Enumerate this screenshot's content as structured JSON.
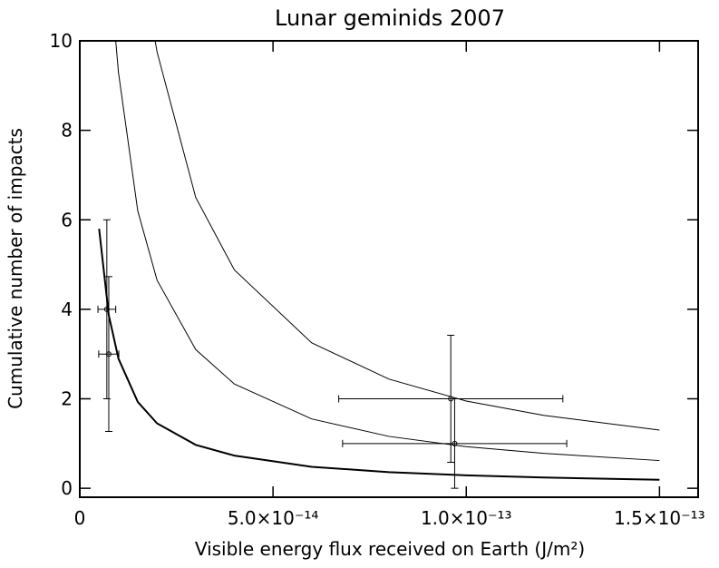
{
  "chart_data": {
    "type": "line",
    "title": "Lunar geminids 2007",
    "x_label": "Visible energy flux received on Earth (J/m²)",
    "y_label": "Cumulative number of impacts",
    "xlim": [
      0,
      1.6e-13
    ],
    "ylim": [
      -0.2,
      10
    ],
    "xticks": [
      0,
      {
        "value": 5e-14,
        "label": "5.0×10⁻¹⁴"
      },
      {
        "value": 1e-13,
        "label": "1.0×10⁻¹³"
      },
      {
        "value": 1.5e-13,
        "label": "1.5×10⁻¹³"
      }
    ],
    "yticks": [
      0,
      2,
      4,
      6,
      8,
      10
    ],
    "color": "#000000",
    "series": [
      {
        "color": "#000000",
        "line_width": 2,
        "x": [
          5e-15,
          7.5e-15,
          1e-14,
          1.5e-14,
          2e-14,
          3e-14,
          4e-14,
          6e-14,
          8e-14,
          1e-13,
          1.2e-13,
          1.5e-13
        ],
        "values": [
          5.8,
          3.87,
          2.9,
          1.93,
          1.45,
          0.97,
          0.73,
          0.48,
          0.36,
          0.29,
          0.24,
          0.19
        ]
      },
      {
        "color": "#000000",
        "line_width": 1,
        "x": [
          9.3e-15,
          1e-14,
          1.5e-14,
          2e-14,
          3e-14,
          4e-14,
          6e-14,
          8e-14,
          1e-13,
          1.2e-13,
          1.5e-13
        ],
        "values": [
          10,
          9.3,
          6.2,
          4.65,
          3.1,
          2.33,
          1.55,
          1.16,
          0.93,
          0.78,
          0.62
        ]
      },
      {
        "color": "#000000",
        "line_width": 1,
        "x": [
          1.95e-14,
          2e-14,
          3e-14,
          4e-14,
          6e-14,
          8e-14,
          1e-13,
          1.2e-13,
          1.5e-13
        ],
        "values": [
          10,
          9.75,
          6.5,
          4.88,
          3.25,
          2.44,
          1.95,
          1.63,
          1.3
        ]
      }
    ],
    "points": {
      "x": [
        7e-15,
        7.5e-15,
        9.6e-14,
        9.7e-14
      ],
      "values": [
        4,
        3,
        2,
        1
      ],
      "xerr": [
        2.3e-15,
        2.6e-15,
        2.9e-14,
        2.9e-14
      ],
      "yerr": [
        2,
        1.73,
        1.42,
        1.0
      ]
    }
  }
}
